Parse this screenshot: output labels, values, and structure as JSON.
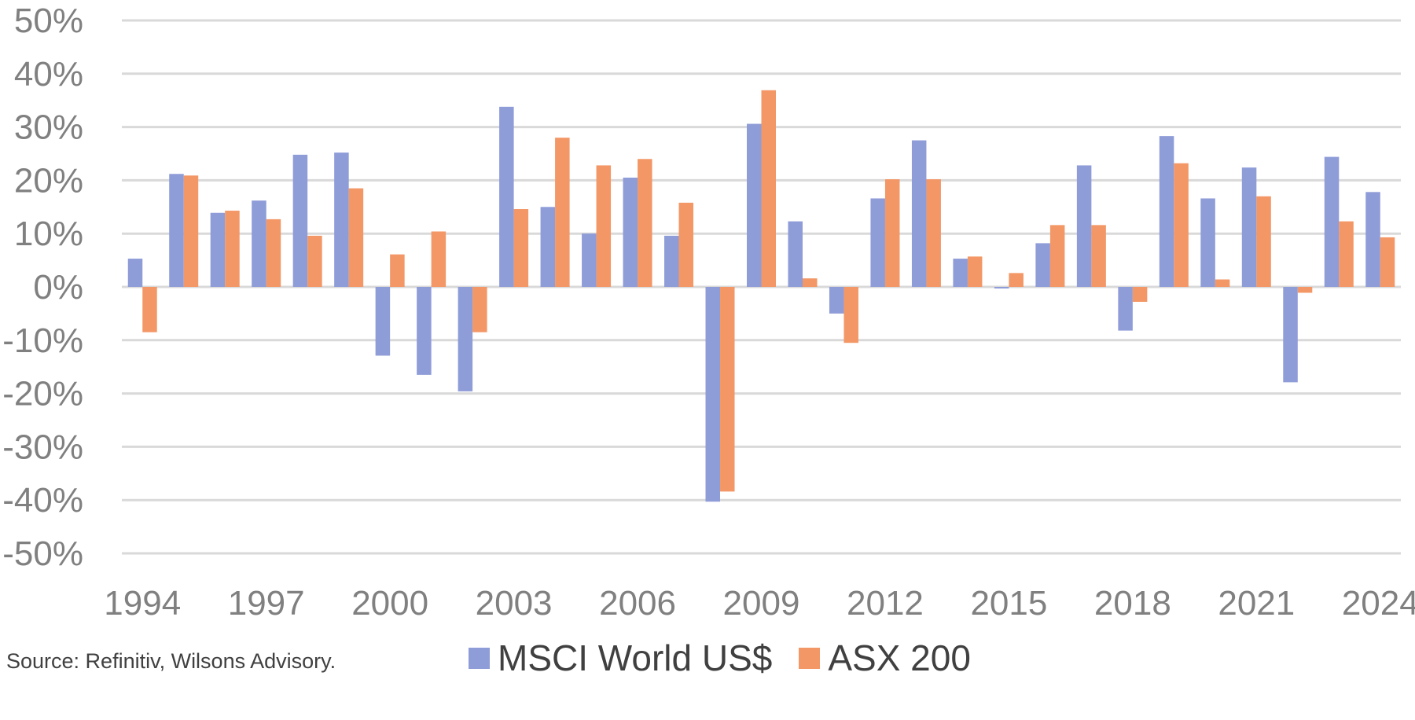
{
  "chart_data": {
    "type": "bar",
    "title": "",
    "xlabel": "",
    "ylabel": "",
    "ylim": [
      -50,
      50
    ],
    "y_ticks": [
      "50%",
      "40%",
      "30%",
      "20%",
      "10%",
      "0%",
      "-10%",
      "-20%",
      "-30%",
      "-40%",
      "-50%"
    ],
    "y_tick_values": [
      50,
      40,
      30,
      20,
      10,
      0,
      -10,
      -20,
      -30,
      -40,
      -50
    ],
    "x_tick_labels": [
      "1994",
      "1997",
      "2000",
      "2003",
      "2006",
      "2009",
      "2012",
      "2015",
      "2018",
      "2021",
      "2024"
    ],
    "categories": [
      "1994",
      "1995",
      "1996",
      "1997",
      "1998",
      "1999",
      "2000",
      "2001",
      "2002",
      "2003",
      "2004",
      "2005",
      "2006",
      "2007",
      "2008",
      "2009",
      "2010",
      "2011",
      "2012",
      "2013",
      "2014",
      "2015",
      "2016",
      "2017",
      "2018",
      "2019",
      "2020",
      "2021",
      "2022",
      "2023",
      "2024"
    ],
    "grid": true,
    "legend_position": "bottom",
    "series": [
      {
        "name": "MSCI World US$",
        "color": "#8E9CD8",
        "values": [
          5.3,
          21.2,
          13.9,
          16.2,
          24.8,
          25.2,
          -12.9,
          -16.5,
          -19.6,
          33.8,
          15.0,
          10.0,
          20.5,
          9.6,
          -40.3,
          30.6,
          12.3,
          -5.0,
          16.6,
          27.5,
          5.3,
          -0.3,
          8.2,
          22.8,
          -8.2,
          28.3,
          16.6,
          22.4,
          -17.9,
          24.4,
          17.8
        ]
      },
      {
        "name": "ASX 200",
        "color": "#F39766",
        "values": [
          -8.5,
          20.9,
          14.3,
          12.7,
          9.6,
          18.5,
          6.1,
          10.4,
          -8.5,
          14.6,
          28.0,
          22.8,
          24.0,
          15.8,
          -38.4,
          36.9,
          1.6,
          -10.5,
          20.2,
          20.2,
          5.7,
          2.6,
          11.6,
          11.6,
          -2.8,
          23.2,
          1.4,
          17.0,
          -1.1,
          12.3,
          9.3
        ]
      }
    ],
    "source": "Source: Refinitiv, Wilsons Advisory."
  }
}
